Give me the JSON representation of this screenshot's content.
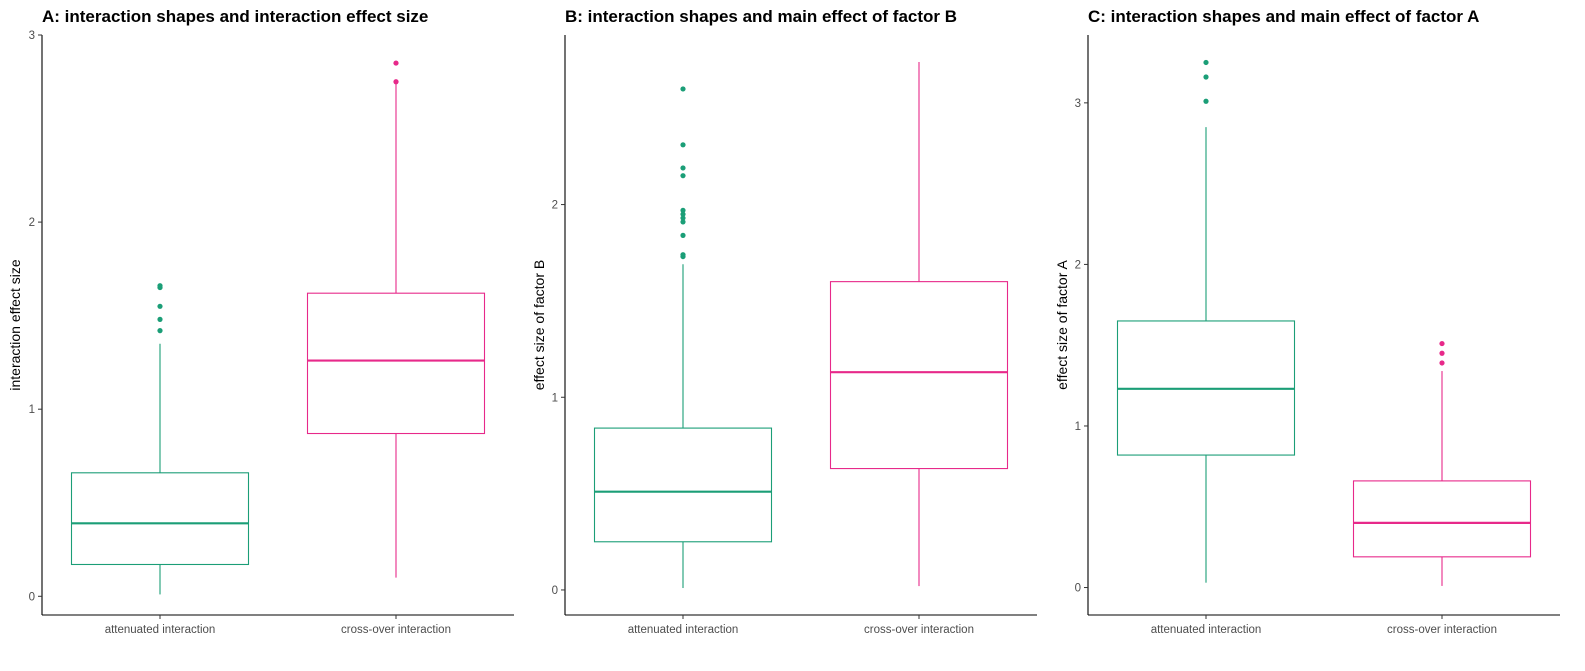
{
  "chart_data": [
    {
      "type": "boxplot",
      "title": "A: interaction shapes and interaction effect size",
      "xlabel": "",
      "ylabel": "interaction effect size",
      "categories": [
        "attenuated interaction",
        "cross-over interaction"
      ],
      "ylim": [
        -0.1,
        3.0
      ],
      "yticks": [
        0,
        1,
        2,
        3
      ],
      "grid": false,
      "boxes": [
        {
          "category": "attenuated interaction",
          "color": "#1b9e77",
          "whisker_low": 0.01,
          "q1": 0.17,
          "median": 0.39,
          "q3": 0.66,
          "whisker_high": 1.35,
          "outliers": [
            1.42,
            1.48,
            1.55,
            1.65,
            1.66
          ]
        },
        {
          "category": "cross-over interaction",
          "color": "#e7298a",
          "whisker_low": 0.1,
          "q1": 0.87,
          "median": 1.26,
          "q3": 1.62,
          "whisker_high": 2.74,
          "outliers": [
            2.75,
            2.85
          ]
        }
      ]
    },
    {
      "type": "boxplot",
      "title": "B: interaction shapes and main effect of factor B",
      "xlabel": "",
      "ylabel": "effect size of factor B",
      "categories": [
        "attenuated interaction",
        "cross-over interaction"
      ],
      "ylim": [
        -0.13,
        2.88
      ],
      "yticks": [
        0,
        1,
        2
      ],
      "grid": false,
      "boxes": [
        {
          "category": "attenuated interaction",
          "color": "#1b9e77",
          "whisker_low": 0.01,
          "q1": 0.25,
          "median": 0.51,
          "q3": 0.84,
          "whisker_high": 1.69,
          "outliers": [
            1.73,
            1.74,
            1.84,
            1.91,
            1.93,
            1.95,
            1.97,
            2.15,
            2.19,
            2.31,
            2.6
          ]
        },
        {
          "category": "cross-over interaction",
          "color": "#e7298a",
          "whisker_low": 0.02,
          "q1": 0.63,
          "median": 1.13,
          "q3": 1.6,
          "whisker_high": 2.74,
          "outliers": []
        }
      ]
    },
    {
      "type": "boxplot",
      "title": "C: interaction shapes and main effect of factor A",
      "xlabel": "",
      "ylabel": "effect size of factor A",
      "categories": [
        "attenuated interaction",
        "cross-over interaction"
      ],
      "ylim": [
        -0.17,
        3.42
      ],
      "yticks": [
        0,
        1,
        2,
        3
      ],
      "grid": false,
      "boxes": [
        {
          "category": "attenuated interaction",
          "color": "#1b9e77",
          "whisker_low": 0.03,
          "q1": 0.82,
          "median": 1.23,
          "q3": 1.65,
          "whisker_high": 2.85,
          "outliers": [
            3.01,
            3.16,
            3.25
          ]
        },
        {
          "category": "cross-over interaction",
          "color": "#e7298a",
          "whisker_low": 0.01,
          "q1": 0.19,
          "median": 0.4,
          "q3": 0.66,
          "whisker_high": 1.34,
          "outliers": [
            1.39,
            1.45,
            1.51
          ]
        }
      ]
    }
  ]
}
